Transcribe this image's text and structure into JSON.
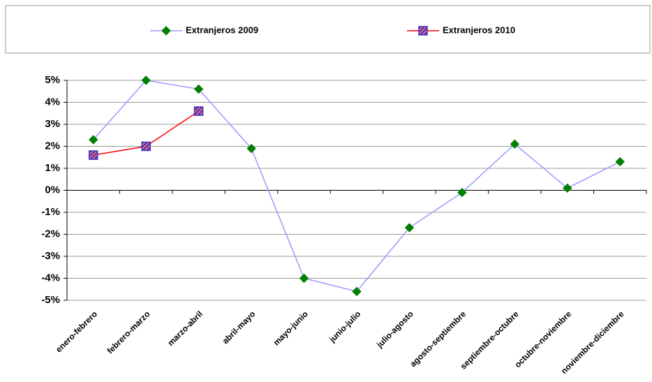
{
  "chart_data": {
    "type": "line",
    "categories": [
      "enero-febrero",
      "febrero-marzo",
      "marzo-abril",
      "abril-mayo",
      "mayo-junio",
      "junio-julio",
      "julio-agosto",
      "agosto-septiembre",
      "septiembre-octubre",
      "octubre-noviembre",
      "noviembre-diciembre"
    ],
    "series": [
      {
        "name": "Extranjeros 2009",
        "color": "#9999ff",
        "marker": "diamond",
        "marker_color": "#008000",
        "values": [
          2.3,
          5.0,
          4.6,
          1.9,
          -4.0,
          -4.6,
          -1.7,
          -0.1,
          2.1,
          0.1,
          1.3
        ]
      },
      {
        "name": "Extranjeros 2010",
        "color": "#ff0000",
        "marker": "square",
        "marker_color": "#3333cc",
        "values": [
          1.6,
          2.0,
          3.6,
          null,
          null,
          null,
          null,
          null,
          null,
          null,
          null
        ]
      }
    ],
    "ylim": [
      -5,
      5
    ],
    "yticks": [
      {
        "value": -5,
        "label": "-5%"
      },
      {
        "value": -4,
        "label": "-4%"
      },
      {
        "value": -3,
        "label": "-3%"
      },
      {
        "value": -2,
        "label": "-2%"
      },
      {
        "value": -1,
        "label": "-1%"
      },
      {
        "value": 0,
        "label": "0%"
      },
      {
        "value": 1,
        "label": "1%"
      },
      {
        "value": 2,
        "label": "2%"
      },
      {
        "value": 3,
        "label": "3%"
      },
      {
        "value": 4,
        "label": "4%"
      },
      {
        "value": 5,
        "label": "5%"
      }
    ],
    "grid": true,
    "legend": "top"
  }
}
